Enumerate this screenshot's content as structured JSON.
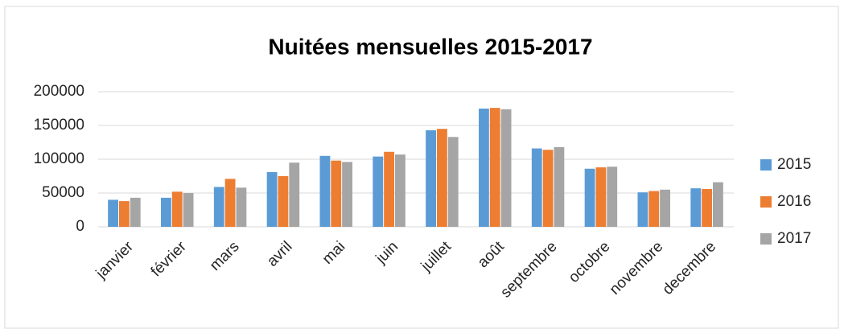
{
  "chart_data": {
    "type": "bar",
    "title": "Nuitées mensuelles 2015-2017",
    "categories": [
      "janvier",
      "février",
      "mars",
      "avril",
      "mai",
      "juin",
      "juillet",
      "août",
      "septembre",
      "octobre",
      "novembre",
      "decembre"
    ],
    "series": [
      {
        "name": "2015",
        "color": "#5b9bd5",
        "values": [
          40000,
          43000,
          59000,
          81000,
          105000,
          104000,
          143000,
          175000,
          116000,
          86000,
          51000,
          57000
        ]
      },
      {
        "name": "2016",
        "color": "#ed7d31",
        "values": [
          38000,
          52000,
          71000,
          75000,
          98000,
          111000,
          145000,
          176000,
          114000,
          88000,
          53000,
          56000
        ]
      },
      {
        "name": "2017",
        "color": "#a5a5a5",
        "values": [
          43000,
          50000,
          58000,
          95000,
          96000,
          107000,
          133000,
          174000,
          118000,
          89000,
          55000,
          66000
        ]
      }
    ],
    "ylim": [
      0,
      200000
    ],
    "yticks": [
      0,
      50000,
      100000,
      150000,
      200000
    ],
    "grid": true,
    "legend": "right"
  }
}
